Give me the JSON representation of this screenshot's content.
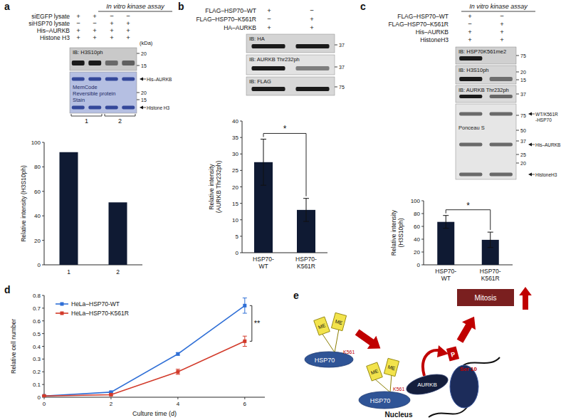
{
  "panel_labels": [
    "a",
    "b",
    "c",
    "d",
    "e"
  ],
  "blots": [
    {
      "assay_title": "In vitro kinase assay",
      "conditions": [
        {
          "label": "siEGFP lysate",
          "lanes": [
            "+",
            "+",
            "−",
            "−"
          ]
        },
        {
          "label": "siHSP70 lysate",
          "lanes": [
            "−",
            "−",
            "+",
            "+"
          ]
        },
        {
          "label": "His–AURKB",
          "lanes": [
            "+",
            "+",
            "+",
            "+"
          ]
        },
        {
          "label": "Histone H3",
          "lanes": [
            "+",
            "+",
            "+",
            "+"
          ]
        }
      ],
      "unit": "(kDa)",
      "membranes": [
        {
          "label": "IB: H3S10ph",
          "markers": [
            20,
            15
          ]
        }
      ],
      "stain": {
        "label": [
          "MemCode",
          "Reversible protein",
          "Stain"
        ],
        "markers": [
          20,
          15
        ],
        "bands": [
          [
            "His–AURKB"
          ],
          [
            "Histone H3"
          ]
        ]
      },
      "lane_groups": [
        "1",
        "2"
      ]
    },
    {
      "conditions": [
        {
          "label": "FLAG–HSP70–WT",
          "lanes": [
            "+",
            "−"
          ]
        },
        {
          "label": "FLAG–HSP70–K561R",
          "lanes": [
            "−",
            "+"
          ]
        },
        {
          "label": "HA–AURKB",
          "lanes": [
            "+",
            "+"
          ]
        }
      ],
      "membranes": [
        {
          "label": "IB: HA",
          "markers": [
            37
          ]
        },
        {
          "label": "IB: AURKB Thr232ph",
          "markers": [
            37
          ]
        },
        {
          "label": "IB: FLAG",
          "markers": [
            75
          ]
        }
      ]
    },
    {
      "assay_title": "In vitro kinase assay",
      "conditions": [
        {
          "label": "FLAG–HSP70–WT",
          "lanes": [
            "+",
            "−"
          ]
        },
        {
          "label": "FLAG–HSP70–K561R",
          "lanes": [
            "−",
            "+"
          ]
        },
        {
          "label": "His–AURKB",
          "lanes": [
            "+",
            "+"
          ]
        },
        {
          "label": "HistoneH3",
          "lanes": [
            "+",
            "+"
          ]
        }
      ],
      "membranes": [
        {
          "label": "IB: HSP70K561me2",
          "markers": [
            75
          ]
        },
        {
          "label": "IB: H3S10ph",
          "markers": [
            20,
            15
          ]
        },
        {
          "label": "IB: AURKB Thr232ph",
          "markers": [
            37
          ]
        }
      ],
      "stain": {
        "label": [
          "Ponceau S"
        ],
        "markers": [
          75,
          50,
          37,
          25,
          20
        ],
        "bands": [
          [
            "WT/K561R",
            "-HSP70"
          ],
          [
            "His–AURKB"
          ],
          [
            "HistoneH3"
          ]
        ]
      }
    }
  ],
  "chart_data": [
    {
      "type": "bar",
      "y_label": [
        "Relative intensity (H3S10ph)"
      ],
      "categories": [
        "1",
        "2"
      ],
      "values": [
        92,
        51
      ],
      "color": "#0f1a33",
      "ylim": [
        0,
        100
      ],
      "yticks": [
        0,
        20,
        40,
        60,
        80,
        100
      ]
    },
    {
      "type": "bar",
      "y_label": [
        "Relative intensity",
        "(AURKB Thr232ph)"
      ],
      "categories": [
        "HSP70-WT",
        "HSP70-K561R"
      ],
      "values": [
        27.5,
        13
      ],
      "errors": [
        7,
        3.5
      ],
      "significance": "*",
      "color": "#0f1a33",
      "ylim": [
        0,
        40
      ],
      "yticks": [
        0,
        5,
        10,
        15,
        20,
        25,
        30,
        35,
        40
      ]
    },
    {
      "type": "bar",
      "y_label": [
        "Relative intensity",
        "(H3S10ph)"
      ],
      "categories": [
        "HSP70-WT",
        "HSP70-K561R"
      ],
      "values": [
        67,
        39
      ],
      "errors": [
        10,
        12
      ],
      "significance": "*",
      "color": "#0f1a33",
      "ylim": [
        0,
        100
      ],
      "yticks": [
        0,
        20,
        40,
        60,
        80,
        100
      ]
    },
    {
      "type": "line",
      "x_label": "Culture time (d)",
      "y_label": [
        "Relative cell number"
      ],
      "x": [
        0,
        2,
        4,
        6
      ],
      "series": [
        {
          "name": "HeLa–HSP70-WT",
          "color": "#2f6fd6",
          "marker": "square",
          "values": [
            0.01,
            0.04,
            0.34,
            0.72
          ],
          "errors": [
            0.003,
            0.005,
            0.01,
            0.06
          ]
        },
        {
          "name": "HeLa–HSP70-K561R",
          "color": "#d23a2a",
          "marker": "square",
          "values": [
            0.01,
            0.02,
            0.2,
            0.44
          ],
          "errors": [
            0.003,
            0.005,
            0.02,
            0.04
          ]
        }
      ],
      "significance": "**",
      "legend": "upper left",
      "xlim": [
        0,
        6.6
      ],
      "xticks": [
        0,
        2,
        4,
        6
      ],
      "ylim": [
        0,
        0.8
      ],
      "yticks": [
        0,
        0.1,
        0.2,
        0.3,
        0.4,
        0.5,
        0.6,
        0.7,
        0.8
      ]
    }
  ],
  "diagram": {
    "complexes": [
      {
        "protein": "HSP70",
        "site": "K561",
        "marks": [
          "ME",
          "ME"
        ]
      },
      {
        "protein": "HSP70",
        "site": "K561",
        "marks": [
          "ME",
          "ME"
        ]
      }
    ],
    "kinase": "AURKB",
    "phosphate": "P",
    "residue": "Ser 10",
    "outcome": "Mitosis",
    "compartment": "Nucleus"
  }
}
